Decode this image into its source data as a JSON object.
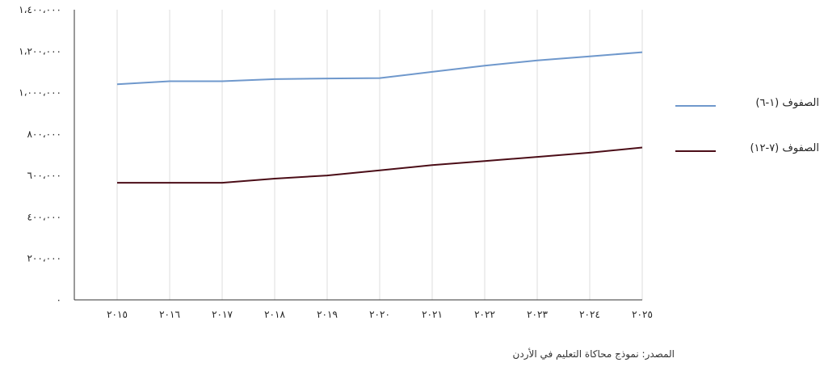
{
  "chart_data": {
    "type": "line",
    "title": "",
    "xlabel": "",
    "ylabel": "",
    "x": [
      "٢٠١٥",
      "٢٠١٦",
      "٢٠١٧",
      "٢٠١٨",
      "٢٠١٩",
      "٢٠٢٠",
      "٢٠٢١",
      "٢٠٢٢",
      "٢٠٢٣",
      "٢٠٢٤",
      "٢٠٢٥"
    ],
    "y_ticks": [
      "٠",
      "٢٠٠،٠٠٠",
      "٤٠٠،٠٠٠",
      "٦٠٠،٠٠٠",
      "٨٠٠،٠٠٠",
      "١،٠٠٠،٠٠٠",
      "١،٢٠٠،٠٠٠",
      "١،٤٠٠،٠٠٠"
    ],
    "y_tick_values": [
      0,
      200000,
      400000,
      600000,
      800000,
      1000000,
      1200000,
      1400000
    ],
    "ylim": [
      0,
      1400000
    ],
    "grid": "vertical",
    "legend_position": "right",
    "series": [
      {
        "name": "الصفوف (١-٦)",
        "color": "#6f98cc",
        "values": [
          1040000,
          1055000,
          1055000,
          1065000,
          1068000,
          1070000,
          1100000,
          1130000,
          1155000,
          1175000,
          1195000
        ]
      },
      {
        "name": "الصفوف (٧-١٢)",
        "color": "#4b0d17",
        "values": [
          565000,
          565000,
          565000,
          585000,
          600000,
          625000,
          650000,
          670000,
          690000,
          710000,
          735000
        ]
      }
    ]
  },
  "source": "المصدر: نموذج محاكاة التعليم في الأردن"
}
